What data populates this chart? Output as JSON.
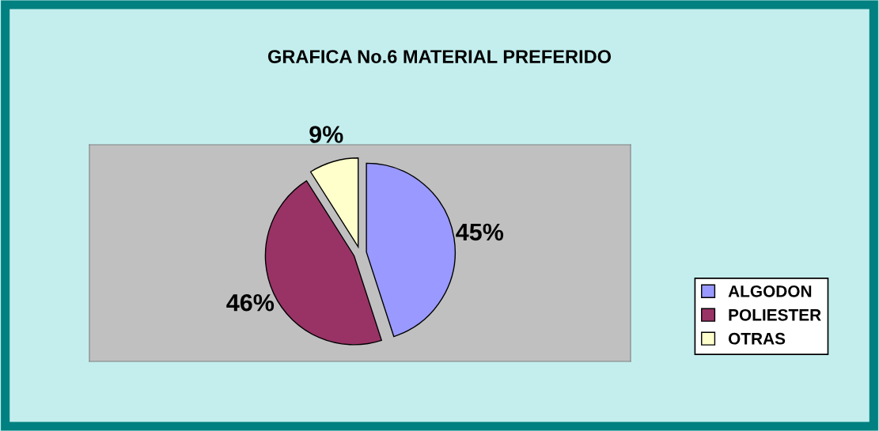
{
  "chart_data": {
    "type": "pie",
    "title": "GRAFICA No.6 MATERIAL PREFERIDO",
    "categories": [
      "ALGODON",
      "POLIESTER",
      "OTRAS"
    ],
    "values": [
      45,
      46,
      9
    ],
    "colors": [
      "#9999ff",
      "#993366",
      "#ffffcc"
    ],
    "value_labels": [
      "45%",
      "46%",
      "9%"
    ],
    "legend": "right"
  }
}
